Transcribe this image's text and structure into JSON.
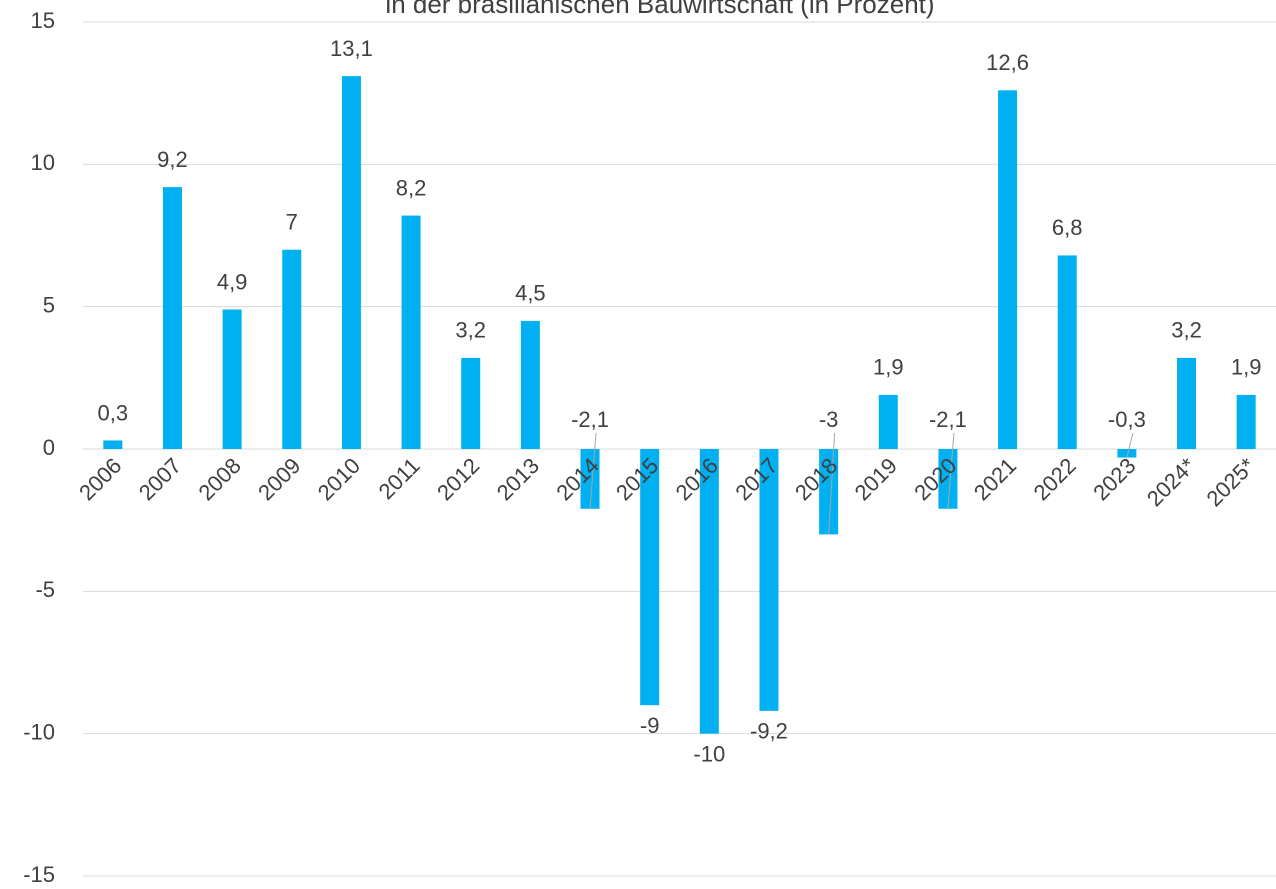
{
  "chart_data": {
    "type": "bar",
    "title": "in der brasilianischen Bauwirtschaft (in Prozent)",
    "categories": [
      "2006",
      "2007",
      "2008",
      "2009",
      "2010",
      "2011",
      "2012",
      "2013",
      "2014",
      "2015",
      "2016",
      "2017",
      "2018",
      "2019",
      "2020",
      "2021",
      "2022",
      "2023",
      "2024*",
      "2025*"
    ],
    "values": [
      0.3,
      9.2,
      4.9,
      7,
      13.1,
      8.2,
      3.2,
      4.5,
      -2.1,
      -9,
      -10,
      -9.2,
      -3,
      1.9,
      -2.1,
      12.6,
      6.8,
      -0.3,
      3.2,
      1.9
    ],
    "value_labels": [
      "0,3",
      "9,2",
      "4,9",
      "7",
      "13,1",
      "8,2",
      "3,2",
      "4,5",
      "-2,1",
      "-9",
      "-10",
      "-9,2",
      "-3",
      "1,9",
      "-2,1",
      "12,6",
      "6,8",
      "-0,3",
      "3,2",
      "1,9"
    ],
    "color": "#00b0f0",
    "ylim": [
      -15,
      15
    ],
    "yticks": [
      -15,
      -10,
      -5,
      0,
      5,
      10,
      15
    ],
    "grid": true
  }
}
